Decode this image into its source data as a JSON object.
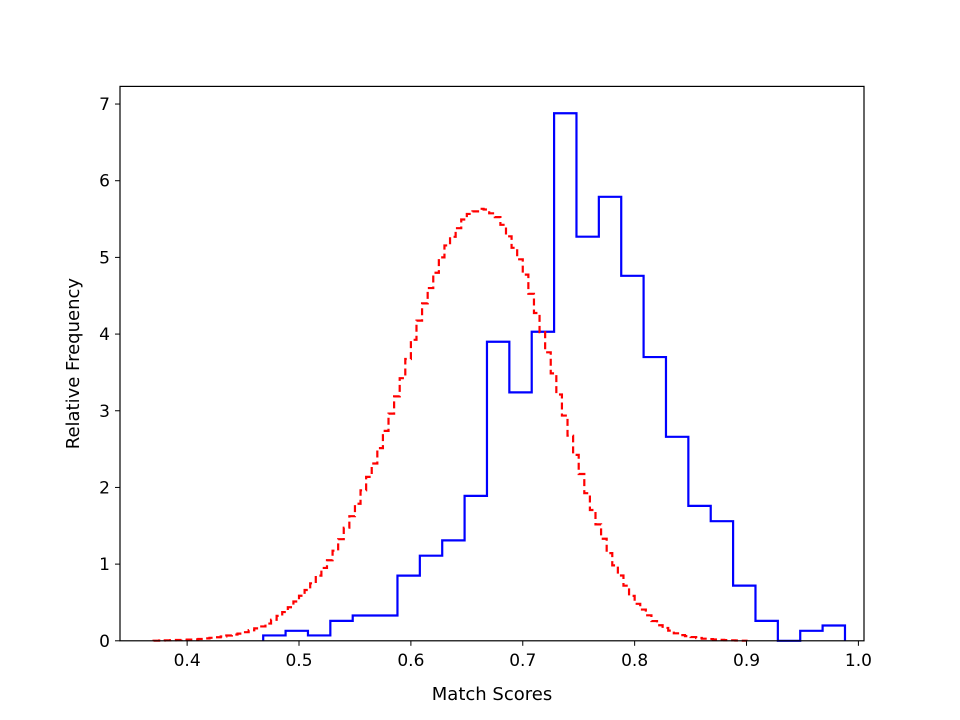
{
  "chart_data": {
    "type": "histogram-step",
    "xlabel": "Match Scores",
    "ylabel": "Relative Frequency",
    "xlim": [
      0.34,
      1.005
    ],
    "ylim": [
      0,
      7.23
    ],
    "x_ticks": [
      "0.4",
      "0.5",
      "0.6",
      "0.7",
      "0.8",
      "0.9",
      "1.0"
    ],
    "y_ticks": [
      "0",
      "1",
      "2",
      "3",
      "4",
      "5",
      "6",
      "7"
    ],
    "grid": false,
    "series": [
      {
        "style": "solid",
        "color": "#0000ff",
        "bin_edges": [
          0.468,
          0.488,
          0.508,
          0.528,
          0.548,
          0.568,
          0.588,
          0.608,
          0.628,
          0.648,
          0.668,
          0.688,
          0.708,
          0.728,
          0.748,
          0.768,
          0.788,
          0.808,
          0.828,
          0.848,
          0.868,
          0.888,
          0.908,
          0.928,
          0.948,
          0.968
        ],
        "values": [
          0.07,
          0.13,
          0.07,
          0.26,
          0.33,
          0.33,
          0.85,
          1.11,
          1.31,
          1.89,
          3.9,
          3.24,
          4.03,
          6.88,
          5.27,
          5.79,
          4.76,
          3.7,
          2.66,
          1.76,
          1.56,
          0.72,
          0.26,
          0.0,
          0.13,
          0.2
        ]
      },
      {
        "style": "dashed",
        "color": "#ff0000",
        "type": "density-curve",
        "x": [
          0.37,
          0.39,
          0.41,
          0.43,
          0.45,
          0.47,
          0.49,
          0.51,
          0.53,
          0.55,
          0.57,
          0.59,
          0.61,
          0.63,
          0.65,
          0.665,
          0.68,
          0.7,
          0.72,
          0.74,
          0.76,
          0.78,
          0.8,
          0.82,
          0.84,
          0.86,
          0.88,
          0.9
        ],
        "values": [
          0.0,
          0.01,
          0.02,
          0.05,
          0.1,
          0.2,
          0.4,
          0.7,
          1.1,
          1.7,
          2.4,
          3.3,
          4.3,
          5.1,
          5.55,
          5.65,
          5.5,
          4.9,
          3.9,
          2.8,
          1.8,
          1.05,
          0.52,
          0.22,
          0.08,
          0.03,
          0.01,
          0.0
        ]
      }
    ]
  }
}
